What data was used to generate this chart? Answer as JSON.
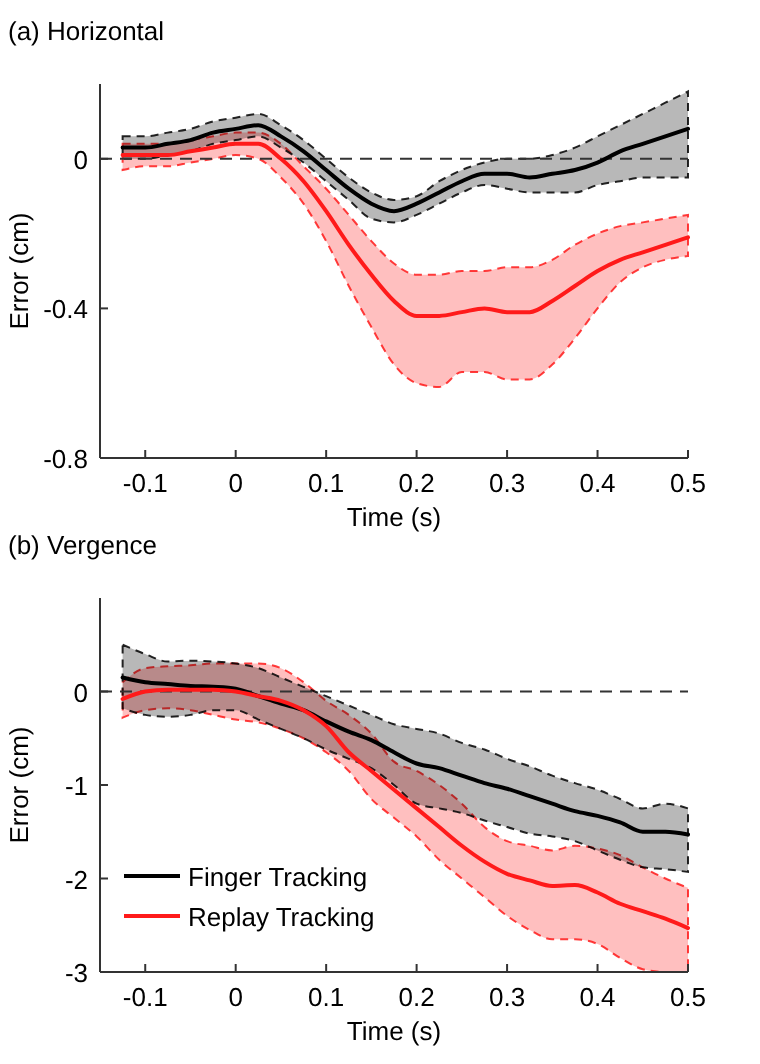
{
  "chart_data": [
    {
      "type": "line",
      "title": "(a) Horizontal",
      "xlabel": "Time (s)",
      "ylabel": "Error (cm)",
      "x": [
        -0.125,
        -0.1,
        -0.075,
        -0.05,
        -0.025,
        0,
        0.025,
        0.05,
        0.075,
        0.1,
        0.125,
        0.15,
        0.175,
        0.2,
        0.225,
        0.25,
        0.275,
        0.3,
        0.325,
        0.35,
        0.375,
        0.4,
        0.425,
        0.45,
        0.475,
        0.5
      ],
      "xlim": [
        -0.15,
        0.5
      ],
      "xticks": [
        -0.1,
        0,
        0.1,
        0.2,
        0.3,
        0.4,
        0.5
      ],
      "ylim": [
        -0.8,
        0.2
      ],
      "yticks": [
        -0.8,
        -0.4,
        0
      ],
      "ref_lines": [
        {
          "axis": "y",
          "value": 0,
          "line_style": "dashed"
        }
      ],
      "series": [
        {
          "color": "#000000",
          "values": [
            0.03,
            0.03,
            0.04,
            0.05,
            0.07,
            0.08,
            0.09,
            0.06,
            0.02,
            -0.03,
            -0.08,
            -0.12,
            -0.14,
            -0.12,
            -0.09,
            -0.06,
            -0.04,
            -0.04,
            -0.05,
            -0.04,
            -0.03,
            -0.01,
            0.02,
            0.04,
            0.06,
            0.08
          ],
          "lower": [
            0,
            0,
            0.01,
            0.02,
            0.04,
            0.05,
            0.06,
            0.03,
            -0.01,
            -0.06,
            -0.11,
            -0.16,
            -0.17,
            -0.15,
            -0.12,
            -0.09,
            -0.07,
            -0.08,
            -0.09,
            -0.09,
            -0.09,
            -0.07,
            -0.06,
            -0.05,
            -0.05,
            -0.05
          ],
          "upper": [
            0.06,
            0.06,
            0.07,
            0.08,
            0.1,
            0.11,
            0.12,
            0.09,
            0.05,
            0,
            -0.05,
            -0.09,
            -0.11,
            -0.1,
            -0.06,
            -0.03,
            -0.01,
            0,
            0,
            0.01,
            0.03,
            0.06,
            0.09,
            0.12,
            0.15,
            0.18
          ]
        },
        {
          "color": "#ff1a1a",
          "values": [
            0.01,
            0.01,
            0.01,
            0.02,
            0.03,
            0.04,
            0.04,
            0,
            -0.06,
            -0.14,
            -0.23,
            -0.31,
            -0.38,
            -0.42,
            -0.42,
            -0.41,
            -0.4,
            -0.41,
            -0.41,
            -0.38,
            -0.34,
            -0.3,
            -0.27,
            -0.25,
            -0.23,
            -0.21
          ],
          "lower": [
            -0.03,
            -0.02,
            -0.02,
            -0.01,
            0,
            0.01,
            0,
            -0.05,
            -0.12,
            -0.22,
            -0.34,
            -0.45,
            -0.55,
            -0.6,
            -0.61,
            -0.57,
            -0.57,
            -0.59,
            -0.59,
            -0.55,
            -0.48,
            -0.4,
            -0.33,
            -0.29,
            -0.27,
            -0.26
          ],
          "upper": [
            0.04,
            0.04,
            0.04,
            0.05,
            0.06,
            0.07,
            0.07,
            0.04,
            -0.02,
            -0.08,
            -0.15,
            -0.22,
            -0.28,
            -0.31,
            -0.31,
            -0.3,
            -0.3,
            -0.29,
            -0.29,
            -0.27,
            -0.23,
            -0.2,
            -0.18,
            -0.17,
            -0.16,
            -0.15
          ]
        }
      ]
    },
    {
      "type": "line",
      "title": "(b) Vergence",
      "xlabel": "Time (s)",
      "ylabel": "Error (cm)",
      "x": [
        -0.125,
        -0.1,
        -0.075,
        -0.05,
        -0.025,
        0,
        0.025,
        0.05,
        0.075,
        0.1,
        0.125,
        0.15,
        0.175,
        0.2,
        0.225,
        0.25,
        0.275,
        0.3,
        0.325,
        0.35,
        0.375,
        0.4,
        0.425,
        0.45,
        0.475,
        0.5
      ],
      "xlim": [
        -0.15,
        0.5
      ],
      "xticks": [
        -0.1,
        0,
        0.1,
        0.2,
        0.3,
        0.4,
        0.5
      ],
      "ylim": [
        -3,
        1
      ],
      "yticks": [
        -3,
        -2,
        -1,
        0
      ],
      "ref_lines": [
        {
          "axis": "y",
          "value": 0,
          "line_style": "dashed"
        }
      ],
      "legend": "bottom left",
      "series": [
        {
          "name": "Finger Tracking",
          "color": "#000000",
          "values": [
            0.15,
            0.1,
            0.08,
            0.06,
            0.05,
            0.03,
            -0.05,
            -0.13,
            -0.2,
            -0.32,
            -0.43,
            -0.52,
            -0.65,
            -0.77,
            -0.82,
            -0.9,
            -0.98,
            -1.04,
            -1.12,
            -1.2,
            -1.28,
            -1.33,
            -1.4,
            -1.5,
            -1.5,
            -1.53
          ],
          "lower": [
            -0.18,
            -0.25,
            -0.27,
            -0.25,
            -0.2,
            -0.2,
            -0.3,
            -0.4,
            -0.5,
            -0.62,
            -0.72,
            -0.82,
            -1,
            -1.2,
            -1.25,
            -1.3,
            -1.38,
            -1.45,
            -1.52,
            -1.55,
            -1.6,
            -1.7,
            -1.8,
            -1.88,
            -1.9,
            -1.93
          ],
          "upper": [
            0.5,
            0.4,
            0.32,
            0.33,
            0.32,
            0.3,
            0.25,
            0.15,
            0.05,
            -0.05,
            -0.15,
            -0.25,
            -0.35,
            -0.4,
            -0.45,
            -0.55,
            -0.62,
            -0.72,
            -0.8,
            -0.9,
            -0.98,
            -1.05,
            -1.15,
            -1.25,
            -1.2,
            -1.25
          ]
        },
        {
          "name": "Replay Tracking",
          "color": "#ff1a1a",
          "values": [
            -0.08,
            0,
            0.02,
            0.02,
            0.02,
            0,
            -0.05,
            -0.1,
            -0.2,
            -0.37,
            -0.65,
            -0.85,
            -1.05,
            -1.25,
            -1.45,
            -1.65,
            -1.82,
            -1.95,
            -2.02,
            -2.08,
            -2.07,
            -2.15,
            -2.27,
            -2.35,
            -2.43,
            -2.53
          ],
          "lower": [
            -0.28,
            -0.2,
            -0.18,
            -0.2,
            -0.25,
            -0.3,
            -0.33,
            -0.4,
            -0.5,
            -0.65,
            -0.85,
            -1.15,
            -1.35,
            -1.55,
            -1.8,
            -2,
            -2.2,
            -2.4,
            -2.55,
            -2.65,
            -2.65,
            -2.7,
            -2.85,
            -2.97,
            -3,
            -3
          ],
          "upper": [
            0.1,
            0.25,
            0.27,
            0.28,
            0.3,
            0.3,
            0.3,
            0.25,
            0.1,
            -0.1,
            -0.25,
            -0.45,
            -0.75,
            -0.85,
            -1,
            -1.2,
            -1.45,
            -1.6,
            -1.65,
            -1.7,
            -1.65,
            -1.68,
            -1.75,
            -1.88,
            -2,
            -2.1
          ]
        }
      ]
    }
  ]
}
